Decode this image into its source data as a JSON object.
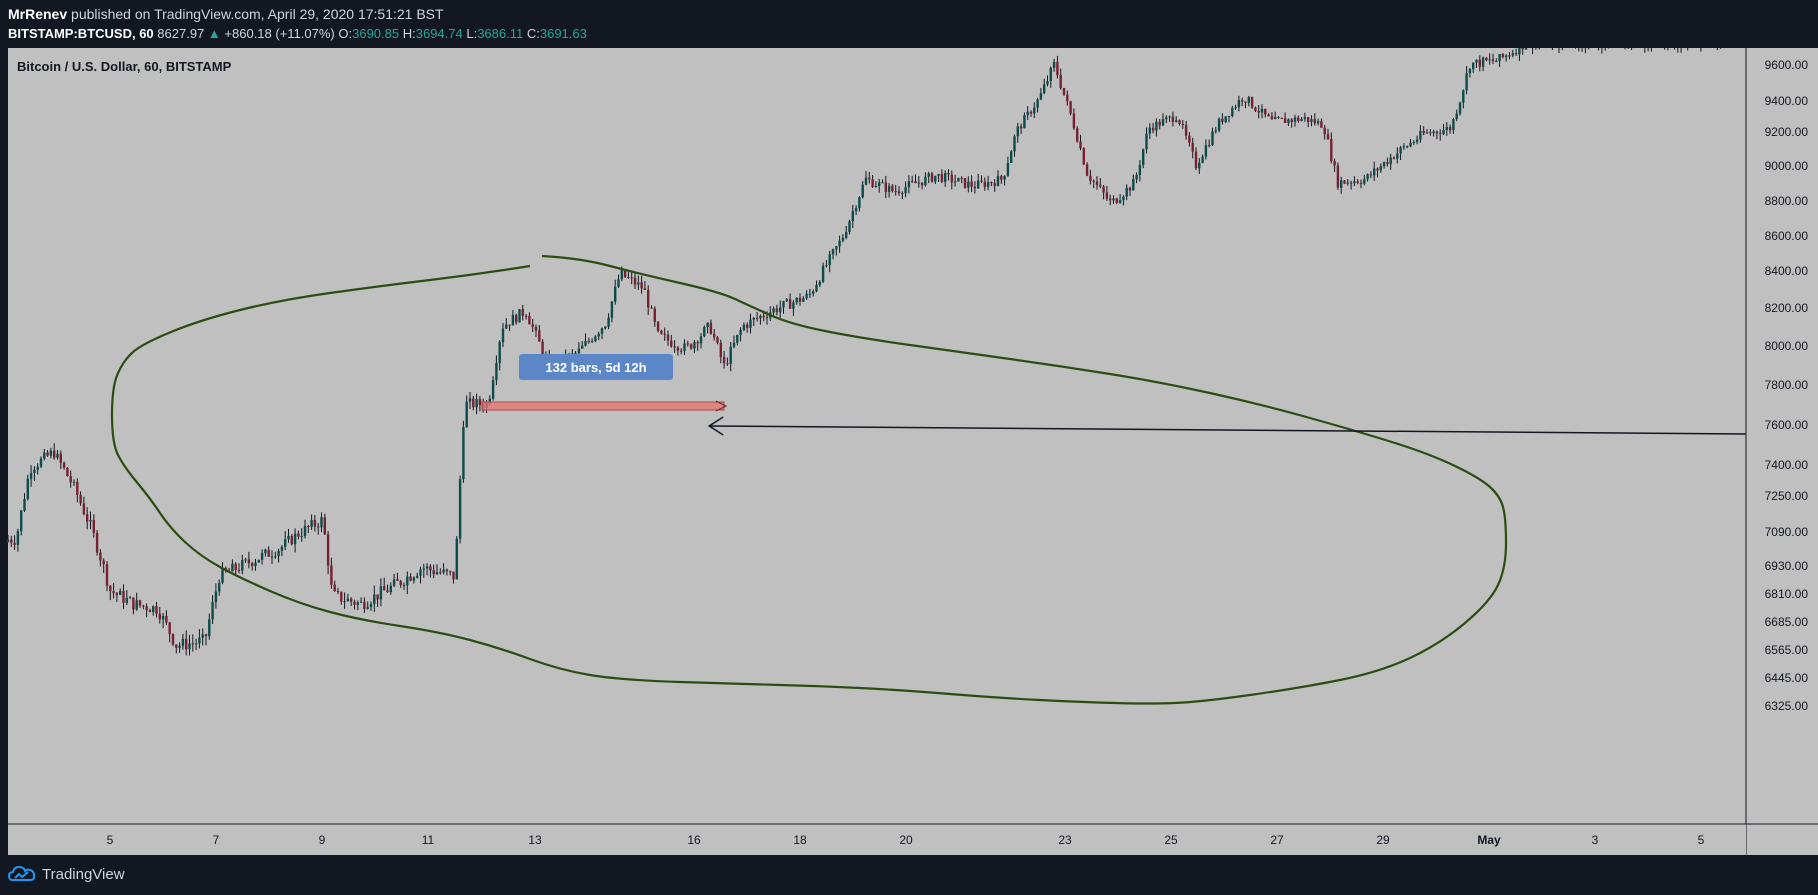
{
  "header": {
    "author": "MrRenev",
    "published_text": "published on TradingView.com, April 29, 2020 17:51:21 BST",
    "symbol_interval": "BITSTAMP:BTCUSD, 60",
    "last_price": "8627.97",
    "change_arrow": "▲",
    "change": "+860.18 (+11.07%)",
    "o_label": "O:",
    "o_value": "3690.85",
    "h_label": "H:",
    "h_value": "3694.74",
    "l_label": "L:",
    "l_value": "3686.11",
    "c_label": "C:",
    "c_value": "3691.63"
  },
  "chart_data": {
    "type": "candlestick",
    "title": "Bitcoin / U.S. Dollar, 60, BITSTAMP",
    "background": "#c0c0c0",
    "up_color": "#0b4d4a",
    "down_color": "#7a1f2f",
    "y_ticks": [
      "9600.00",
      "9400.00",
      "9200.00",
      "9000.00",
      "8800.00",
      "8600.00",
      "8400.00",
      "8200.00",
      "8000.00",
      "7800.00",
      "7600.00",
      "7400.00",
      "7250.00",
      "7090.00",
      "6930.00",
      "6810.00",
      "6685.00",
      "6565.00",
      "6445.00",
      "6325.00"
    ],
    "x_ticks": [
      "5",
      "7",
      "9",
      "11",
      "13",
      "16",
      "18",
      "20",
      "23",
      "25",
      "27",
      "29",
      "May",
      "3",
      "5"
    ],
    "price_path": [
      {
        "day": "Apr 3",
        "price": 7050
      },
      {
        "day": "Apr 3.3",
        "price": 7380
      },
      {
        "day": "Apr 3.8",
        "price": 7460
      },
      {
        "day": "Apr 4.2",
        "price": 7300
      },
      {
        "day": "Apr 4.6",
        "price": 7100
      },
      {
        "day": "Apr 5",
        "price": 6820
      },
      {
        "day": "Apr 5.5",
        "price": 6760
      },
      {
        "day": "Apr 6",
        "price": 6740
      },
      {
        "day": "Apr 6.4",
        "price": 6580
      },
      {
        "day": "Apr 7",
        "price": 6600
      },
      {
        "day": "Apr 7.3",
        "price": 6880
      },
      {
        "day": "Apr 8",
        "price": 6950
      },
      {
        "day": "Apr 8.6",
        "price": 7010
      },
      {
        "day": "Apr 9",
        "price": 7080
      },
      {
        "day": "Apr 9.5",
        "price": 7140
      },
      {
        "day": "Apr 9.7",
        "price": 6800
      },
      {
        "day": "Apr 10.3",
        "price": 6760
      },
      {
        "day": "Apr 11",
        "price": 6840
      },
      {
        "day": "Apr 11.6",
        "price": 6920
      },
      {
        "day": "Apr 12.3",
        "price": 6880
      },
      {
        "day": "Apr 12.5",
        "price": 7700
      },
      {
        "day": "Apr 13",
        "price": 7700
      },
      {
        "day": "Apr 13.3",
        "price": 8100
      },
      {
        "day": "Apr 13.8",
        "price": 8180
      },
      {
        "day": "Apr 14.3",
        "price": 7880
      },
      {
        "day": "Apr 14.9",
        "price": 7960
      },
      {
        "day": "Apr 15.5",
        "price": 8120
      },
      {
        "day": "Apr 15.8",
        "price": 8380
      },
      {
        "day": "Apr 16.3",
        "price": 8300
      },
      {
        "day": "Apr 16.6",
        "price": 8050
      },
      {
        "day": "Apr 17.2",
        "price": 7980
      },
      {
        "day": "Apr 17.7",
        "price": 8100
      },
      {
        "day": "Apr 18",
        "price": 7890
      },
      {
        "day": "Apr 18.4",
        "price": 8100
      },
      {
        "day": "Apr 19",
        "price": 8180
      },
      {
        "day": "Apr 19.8",
        "price": 8260
      },
      {
        "day": "Apr 20.5",
        "price": 8580
      },
      {
        "day": "Apr 21",
        "price": 8920
      },
      {
        "day": "Apr 21.6",
        "price": 8850
      },
      {
        "day": "Apr 22.5",
        "price": 8940
      },
      {
        "day": "Apr 23.3",
        "price": 8880
      },
      {
        "day": "Apr 23.9",
        "price": 8920
      },
      {
        "day": "Apr 24.2",
        "price": 9200
      },
      {
        "day": "Apr 24.7",
        "price": 9420
      },
      {
        "day": "Apr 25",
        "price": 9600
      },
      {
        "day": "Apr 25.3",
        "price": 9350
      },
      {
        "day": "Apr 25.7",
        "price": 8950
      },
      {
        "day": "Apr 26.2",
        "price": 8780
      },
      {
        "day": "Apr 26.7",
        "price": 8900
      },
      {
        "day": "Apr 27",
        "price": 9220
      },
      {
        "day": "Apr 27.6",
        "price": 9300
      },
      {
        "day": "Apr 28",
        "price": 9000
      },
      {
        "day": "Apr 28.5",
        "price": 9260
      },
      {
        "day": "Apr 29",
        "price": 9420
      },
      {
        "day": "Apr 29.6",
        "price": 9260
      },
      {
        "day": "Apr 30.3",
        "price": 9280
      },
      {
        "day": "Apr 30.7",
        "price": 9240
      },
      {
        "day": "May 1",
        "price": 8900
      },
      {
        "day": "May 1.6",
        "price": 8920
      },
      {
        "day": "May 2.2",
        "price": 9060
      },
      {
        "day": "May 2.8",
        "price": 9180
      },
      {
        "day": "May 3.4",
        "price": 9220
      },
      {
        "day": "May 3.8",
        "price": 9600
      },
      {
        "day": "May 4.4",
        "price": 9620
      },
      {
        "day": "May 5",
        "price": 9720
      }
    ],
    "annotations": {
      "measure_label": "132 bars, 5d 12h",
      "measure_from": {
        "day": "Apr 13",
        "price": 7690
      },
      "measure_to": {
        "day": "Apr 18",
        "price": 7690
      },
      "ellipse": "hand-drawn loop Apr 4 to May 1, price range 6600 to 8650",
      "arrow": {
        "from_price": 7540,
        "to_day": "Apr 19",
        "to_price": 7600
      }
    }
  },
  "footer": {
    "brand": "TradingView"
  }
}
